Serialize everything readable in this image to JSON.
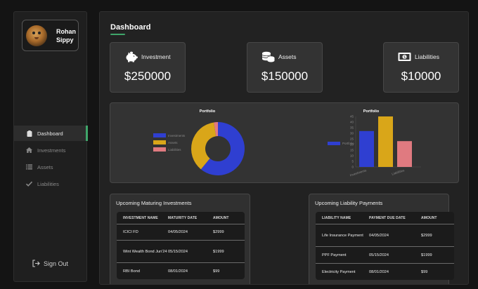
{
  "sidebar": {
    "profile_name": "Rohan Sippy",
    "nav": [
      {
        "label": "Dashboard",
        "icon": "clipboard-icon",
        "active": true
      },
      {
        "label": "Investments",
        "icon": "home-icon",
        "active": false
      },
      {
        "label": "Assets",
        "icon": "list-icon",
        "active": false
      },
      {
        "label": "Liabilities",
        "icon": "check-icon",
        "active": false
      }
    ],
    "signout_label": "Sign Out"
  },
  "main": {
    "title": "Dashboard",
    "cards": [
      {
        "label": "Investment",
        "value": "$250000",
        "icon": "piggy-bank-icon"
      },
      {
        "label": "Assets",
        "value": "$150000",
        "icon": "coins-icon"
      },
      {
        "label": "Liabilities",
        "value": "$10000",
        "icon": "money-bill-icon"
      }
    ]
  },
  "chart_data": [
    {
      "type": "pie",
      "title": "Portfolio",
      "categories": [
        "Investments",
        "Assets",
        "Liabilities"
      ],
      "values": [
        25,
        15,
        1
      ],
      "colors": [
        "#2f3fd1",
        "#d9a619",
        "#e07a80"
      ],
      "legend": "left"
    },
    {
      "type": "bar",
      "title": "Portfolio",
      "categories": [
        "Investments",
        "Assets",
        "Liabilities"
      ],
      "tick_labels": [
        "Investments",
        "Liabilities"
      ],
      "values": [
        32,
        45,
        23
      ],
      "colors": [
        "#2f3fd1",
        "#d9a619",
        "#e07a80"
      ],
      "legend_label": "Portfolio",
      "ylim": [
        0,
        45
      ],
      "yticks": [
        0,
        5,
        10,
        15,
        20,
        25,
        30,
        35,
        40,
        45
      ]
    }
  ],
  "tables": {
    "investments": {
      "title": "Upcoming Maturing Investments",
      "columns": [
        "INVESTMENT NAME",
        "MATURITY DATE",
        "AMOUNT"
      ],
      "rows": [
        [
          "ICICI FD",
          "04/05/2024",
          "$2999"
        ],
        [
          "Wint Wealth Bond Jun'24",
          "05/15/2024",
          "$1999"
        ],
        [
          "RBI Bond",
          "08/01/2024",
          "$99"
        ]
      ]
    },
    "liabilities": {
      "title": "Upcoming Liability Payments",
      "columns": [
        "LIABILITY NAME",
        "PAYMENT DUE DATE",
        "AMOUNT"
      ],
      "rows": [
        [
          "Life Insurance Payment",
          "04/05/2024",
          "$2999"
        ],
        [
          "PPF Payment",
          "05/15/2024",
          "$1999"
        ],
        [
          "Electricity Payment",
          "08/01/2024",
          "$99"
        ]
      ]
    }
  }
}
